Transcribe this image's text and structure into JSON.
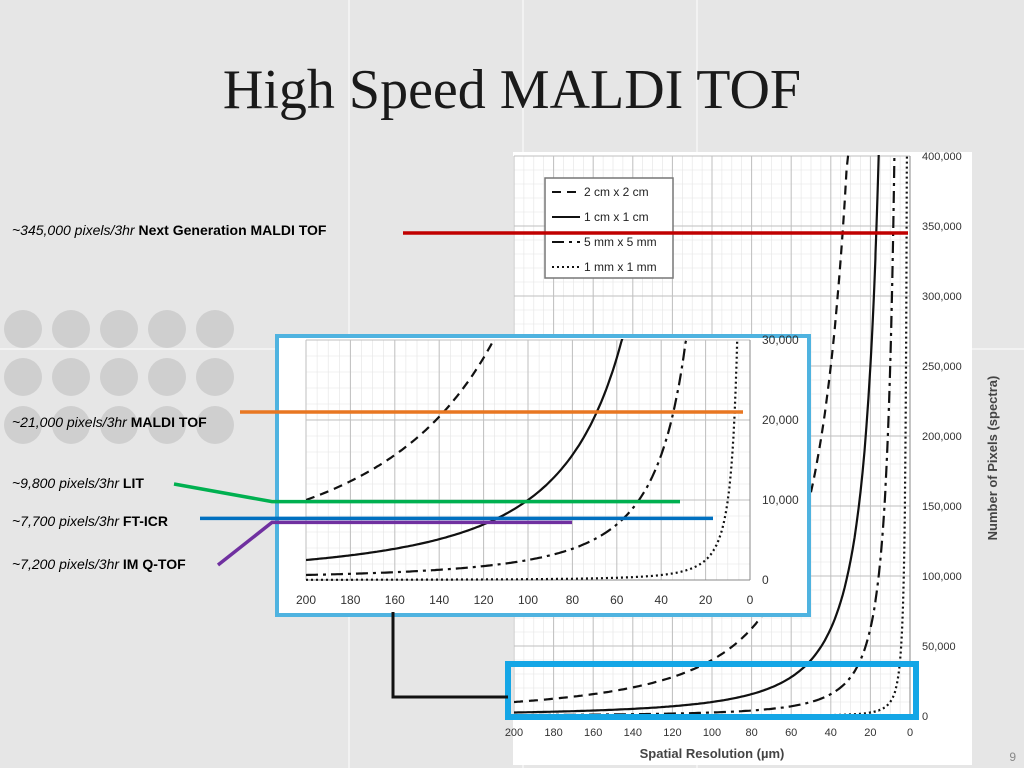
{
  "slide": {
    "title": "High Speed MALDI TOF",
    "page_number": "9"
  },
  "annotations": [
    {
      "value": "~345,000 pixels/3hr",
      "name": "Next Generation MALDI TOF",
      "color": "#c00000",
      "level": 345000
    },
    {
      "value": "~21,000 pixels/3hr",
      "name": "MALDI TOF",
      "color": "#e87722",
      "level": 21000
    },
    {
      "value": "~9,800 pixels/3hr",
      "name": "LIT",
      "color": "#00b050",
      "level": 9800
    },
    {
      "value": "~7,700 pixels/3hr",
      "name": "FT-ICR",
      "color": "#0070c0",
      "level": 7700
    },
    {
      "value": "~7,200 pixels/3hr",
      "name": "IM Q-TOF",
      "color": "#7030a0",
      "level": 7200
    }
  ],
  "chart_data": [
    {
      "type": "line",
      "title": "",
      "xlabel": "Spatial Resolution (µm)",
      "ylabel": "Number of Pixels (spectra)",
      "xlim": [
        200,
        0
      ],
      "ylim": [
        0,
        400000
      ],
      "x_ticks": [
        "200",
        "180",
        "160",
        "140",
        "120",
        "100",
        "80",
        "60",
        "40",
        "20",
        "0"
      ],
      "y_ticks": [
        "0",
        "50,000",
        "100,000",
        "150,000",
        "200,000",
        "250,000",
        "300,000",
        "350,000",
        "400,000"
      ],
      "grid": true,
      "legend_position": "top-left",
      "series": [
        {
          "name": "2 cm x 2 cm",
          "style": "dashed",
          "area_cm2": 4
        },
        {
          "name": "1 cm x 1 cm",
          "style": "solid",
          "area_cm2": 1
        },
        {
          "name": "5 mm x 5 mm",
          "style": "dash-dot",
          "area_cm2": 0.25
        },
        {
          "name": "1 mm x 1 mm",
          "style": "dotted",
          "area_cm2": 0.01
        }
      ]
    },
    {
      "type": "line",
      "title": "",
      "xlim": [
        200,
        0
      ],
      "ylim": [
        0,
        30000
      ],
      "x_ticks": [
        "200",
        "180",
        "160",
        "140",
        "120",
        "100",
        "80",
        "60",
        "40",
        "20",
        "0"
      ],
      "y_ticks": [
        "0",
        "10,000",
        "20,000",
        "30,000"
      ],
      "grid": true,
      "series": [
        {
          "style": "dashed",
          "area_cm2": 4
        },
        {
          "style": "solid",
          "area_cm2": 1
        },
        {
          "style": "dash-dot",
          "area_cm2": 0.25
        },
        {
          "style": "dotted",
          "area_cm2": 0.01
        }
      ]
    }
  ]
}
